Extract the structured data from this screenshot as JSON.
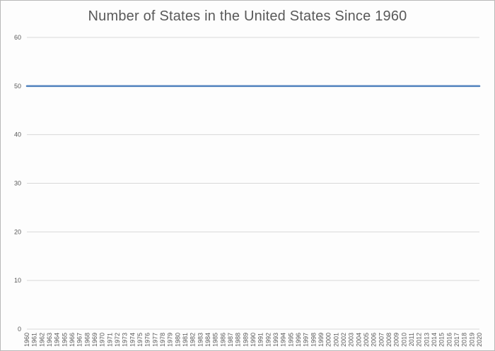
{
  "chart_data": {
    "type": "line",
    "title": "Number of States in the United States Since 1960",
    "xlabel": "",
    "ylabel": "",
    "categories": [
      "1960",
      "1961",
      "1962",
      "1963",
      "1964",
      "1965",
      "1966",
      "1967",
      "1968",
      "1969",
      "1970",
      "1971",
      "1972",
      "1973",
      "1974",
      "1975",
      "1976",
      "1977",
      "1978",
      "1979",
      "1980",
      "1981",
      "1982",
      "1983",
      "1984",
      "1985",
      "1986",
      "1987",
      "1988",
      "1989",
      "1990",
      "1991",
      "1992",
      "1993",
      "1994",
      "1995",
      "1996",
      "1997",
      "1998",
      "1999",
      "2000",
      "2001",
      "2002",
      "2003",
      "2004",
      "2005",
      "2006",
      "2007",
      "2008",
      "2009",
      "2010",
      "2011",
      "2012",
      "2013",
      "2014",
      "2015",
      "2016",
      "2017",
      "2018",
      "2019",
      "2020"
    ],
    "values": [
      50,
      50,
      50,
      50,
      50,
      50,
      50,
      50,
      50,
      50,
      50,
      50,
      50,
      50,
      50,
      50,
      50,
      50,
      50,
      50,
      50,
      50,
      50,
      50,
      50,
      50,
      50,
      50,
      50,
      50,
      50,
      50,
      50,
      50,
      50,
      50,
      50,
      50,
      50,
      50,
      50,
      50,
      50,
      50,
      50,
      50,
      50,
      50,
      50,
      50,
      50,
      50,
      50,
      50,
      50,
      50,
      50,
      50,
      50,
      50,
      50
    ],
    "ylim": [
      0,
      60
    ],
    "yticks": [
      0,
      10,
      20,
      30,
      40,
      50,
      60
    ],
    "grid": true,
    "legend": false,
    "markers": false,
    "colors": {
      "line": "#4f81bd",
      "gridline": "#d9d9d9",
      "axis_line": "#d9d9d9",
      "tick_text": "#595959",
      "title_text": "#595959",
      "frame_border": "#b9b9b9",
      "background": "#fdfdfd"
    }
  }
}
